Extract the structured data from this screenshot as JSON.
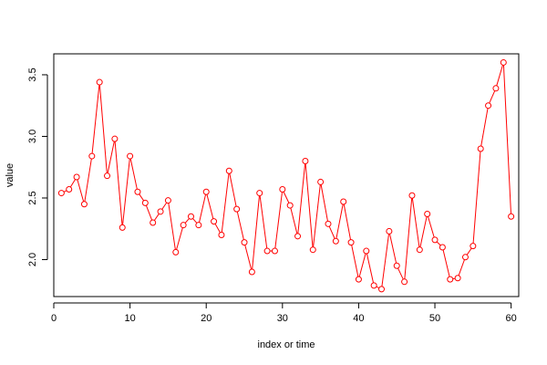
{
  "chart_data": {
    "type": "line",
    "xlabel": "index or time",
    "ylabel": "value",
    "xlim": [
      0,
      61
    ],
    "ylim": [
      1.7,
      3.67
    ],
    "x_ticks": [
      0,
      10,
      20,
      30,
      40,
      50,
      60
    ],
    "y_ticks": [
      2.0,
      2.5,
      3.0,
      3.5
    ],
    "y_tick_labels": [
      "2.0",
      "2.5",
      "3.0",
      "3.5"
    ],
    "grid": false,
    "series": [
      {
        "color": "#ff0000",
        "marker": "open-circle",
        "x": [
          1,
          2,
          3,
          4,
          5,
          6,
          7,
          8,
          9,
          10,
          11,
          12,
          13,
          14,
          15,
          16,
          17,
          18,
          19,
          20,
          21,
          22,
          23,
          24,
          25,
          26,
          27,
          28,
          29,
          30,
          31,
          32,
          33,
          34,
          35,
          36,
          37,
          38,
          39,
          40,
          41,
          42,
          43,
          44,
          45,
          46,
          47,
          48,
          49,
          50,
          51,
          52,
          53,
          54,
          55,
          56,
          57,
          58,
          59,
          60
        ],
        "values": [
          2.54,
          2.57,
          2.67,
          2.45,
          2.84,
          3.44,
          2.68,
          2.98,
          2.26,
          2.84,
          2.55,
          2.46,
          2.3,
          2.39,
          2.48,
          2.06,
          2.28,
          2.35,
          2.28,
          2.55,
          2.31,
          2.2,
          2.72,
          2.41,
          2.14,
          1.9,
          2.54,
          2.07,
          2.07,
          2.57,
          2.44,
          2.19,
          2.8,
          2.08,
          2.63,
          2.29,
          2.15,
          2.47,
          2.14,
          1.84,
          2.07,
          1.79,
          1.76,
          2.23,
          1.95,
          1.82,
          2.52,
          2.08,
          2.37,
          2.16,
          2.1,
          1.84,
          1.85,
          2.02,
          2.11,
          2.9,
          3.25,
          3.39,
          3.6,
          2.35
        ]
      }
    ]
  }
}
